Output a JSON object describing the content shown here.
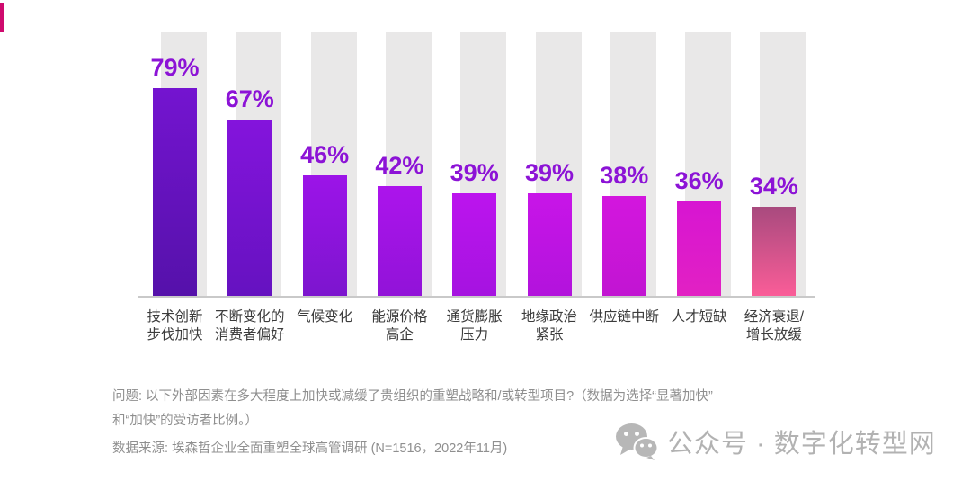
{
  "decor": {
    "corner_mark_color": "#cf0a6e"
  },
  "chart_data": {
    "type": "bar",
    "title": "",
    "unit": "%",
    "ylim": [
      0,
      100
    ],
    "grid": false,
    "legend": "none",
    "track_value": 100,
    "track_color": "#e9e8e8",
    "baseline_color": "#c9c9c9",
    "value_label_color": "#8c13d6",
    "category_label_color": "#3c3c3c",
    "categories": [
      [
        "技术创新",
        "步伐加快"
      ],
      [
        "不断变化的",
        "消费者偏好"
      ],
      [
        "气候变化"
      ],
      [
        "能源价格",
        "高企"
      ],
      [
        "通货膨胀",
        "压力"
      ],
      [
        "地缘政治",
        "紧张"
      ],
      [
        "供应链中断"
      ],
      [
        "人才短缺"
      ],
      [
        "经济衰退/",
        "增长放缓"
      ]
    ],
    "values": [
      79,
      67,
      46,
      42,
      39,
      39,
      38,
      36,
      34
    ],
    "value_labels": [
      "79%",
      "67%",
      "46%",
      "42%",
      "39%",
      "39%",
      "38%",
      "36%",
      "34%"
    ],
    "gradients": [
      [
        "#7414d0",
        "#5511aa"
      ],
      [
        "#8414dc",
        "#6512c0"
      ],
      [
        "#9c14e8",
        "#7c15ce"
      ],
      [
        "#ac14ec",
        "#9113d8"
      ],
      [
        "#bc14ee",
        "#a513e0"
      ],
      [
        "#c815e8",
        "#b213dc"
      ],
      [
        "#d316de",
        "#c115d2"
      ],
      [
        "#d715d2",
        "#e221c3"
      ],
      [
        "#a84a7e",
        "#fb5d98"
      ]
    ]
  },
  "footnote": {
    "line1": "问题: 以下外部因素在多大程度上加快或减缓了贵组织的重塑战略和/或转型项目?（数据为选择“显著加快”",
    "line2": "和“加快”的受访者比例。）",
    "color": "#8f8f8f"
  },
  "source": {
    "text": "数据来源: 埃森哲企业全面重塑全球高管调研 (N=1516，2022年11月)",
    "color": "#8f8f8f"
  },
  "watermark": {
    "icon": "wechat-icon",
    "text": "公众号 · 数字化转型网",
    "color": "#b2b2b2"
  }
}
